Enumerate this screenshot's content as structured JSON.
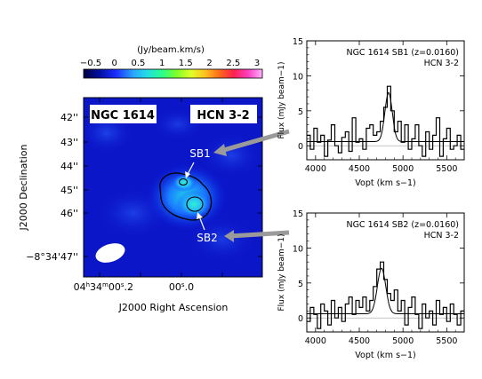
{
  "map": {
    "colorbar_unit": "(Jy/beam.km/s)",
    "colorbar_ticks": [
      "−0.5",
      "0",
      "0.5",
      "1",
      "1.5",
      "2",
      "2.5",
      "3"
    ],
    "object_label": "NGC 1614",
    "line_label": "HCN 3-2",
    "region_labels": [
      "SB1",
      "SB2"
    ],
    "y_ticks": [
      "42''",
      "43''",
      "44''",
      "45''",
      "46''",
      "−8°34'47''"
    ],
    "x_ticks": [
      "04h34m00s.2",
      "00s.0"
    ],
    "xlabel": "J2000 Right Ascension",
    "ylabel": "J2000 Declination"
  },
  "chart_data": [
    {
      "type": "line",
      "title": "NGC 1614 SB1 (z=0.0160)",
      "subtitle": "HCN 3-2",
      "xlabel": "Vopt (km s−1)",
      "ylabel": "Flux (mJy beam−1)",
      "xlim": [
        3900,
        5700
      ],
      "ylim": [
        -2,
        15
      ],
      "x_ticks": [
        4000,
        4500,
        5000,
        5500
      ],
      "y_ticks": [
        0,
        5,
        10,
        15
      ],
      "series": [
        {
          "style": "histogram",
          "x": [
            3920,
            3960,
            4000,
            4040,
            4080,
            4120,
            4160,
            4200,
            4240,
            4280,
            4320,
            4360,
            4400,
            4440,
            4480,
            4520,
            4560,
            4600,
            4640,
            4680,
            4720,
            4760,
            4800,
            4840,
            4880,
            4920,
            4960,
            5000,
            5040,
            5080,
            5120,
            5160,
            5200,
            5240,
            5280,
            5320,
            5360,
            5400,
            5440,
            5480,
            5520,
            5560,
            5600,
            5640,
            5680
          ],
          "y": [
            1.5,
            -0.5,
            2.5,
            0.5,
            1.5,
            -1.5,
            0.8,
            3,
            0,
            -1,
            1.2,
            2,
            -0.8,
            4,
            0.5,
            1,
            -0.5,
            2.5,
            3,
            1.5,
            2,
            3.5,
            5.5,
            8.5,
            5,
            2,
            3.5,
            0.5,
            3,
            -0.5,
            1,
            3,
            0,
            -1.5,
            2,
            -0.5,
            1.5,
            4,
            -1.5,
            1,
            2.5,
            -0.5,
            0,
            1.5,
            -0.5
          ]
        },
        {
          "style": "gaussian_fit",
          "amplitude": 7.0,
          "center": 4835,
          "sigma": 42,
          "offset": 0.6
        }
      ]
    },
    {
      "type": "line",
      "title": "NGC 1614 SB2 (z=0.0160)",
      "subtitle": "HCN 3-2",
      "xlabel": "Vopt (km s−1)",
      "ylabel": "Flux (mJy beam−1)",
      "xlim": [
        3900,
        5700
      ],
      "ylim": [
        -2,
        15
      ],
      "x_ticks": [
        4000,
        4500,
        5000,
        5500
      ],
      "y_ticks": [
        0,
        5,
        10,
        15
      ],
      "series": [
        {
          "style": "histogram",
          "x": [
            3920,
            3960,
            4000,
            4040,
            4080,
            4120,
            4160,
            4200,
            4240,
            4280,
            4320,
            4360,
            4400,
            4440,
            4480,
            4520,
            4560,
            4600,
            4640,
            4680,
            4720,
            4760,
            4800,
            4840,
            4880,
            4920,
            4960,
            5000,
            5040,
            5080,
            5120,
            5160,
            5200,
            5240,
            5280,
            5320,
            5360,
            5400,
            5440,
            5480,
            5520,
            5560,
            5600,
            5640,
            5680
          ],
          "y": [
            -0.5,
            1.5,
            0.5,
            -1.5,
            2,
            1,
            -1,
            2.5,
            0,
            1.5,
            -0.5,
            2,
            3,
            0.5,
            2.5,
            1.5,
            3,
            1,
            2.5,
            4.5,
            7,
            8,
            5.5,
            3.5,
            2.5,
            4,
            1,
            2.5,
            -1,
            1.5,
            3,
            0.5,
            -1.5,
            2,
            0,
            1,
            -1,
            2.5,
            0.5,
            1.5,
            -0.5,
            2,
            0.5,
            -1,
            1
          ]
        },
        {
          "style": "gaussian_fit",
          "amplitude": 6.5,
          "center": 4755,
          "sigma": 48,
          "offset": 0.6
        }
      ]
    }
  ],
  "colors": {
    "arrow": "#9a9a9a",
    "contour": "#000000",
    "beam": "#ffffff"
  }
}
